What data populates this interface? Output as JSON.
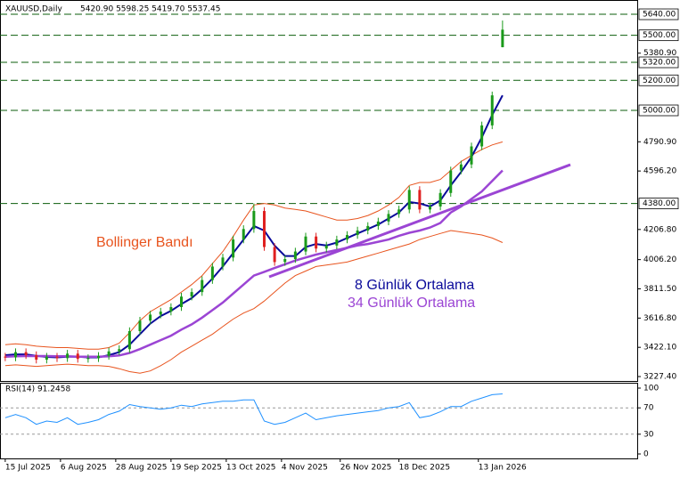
{
  "chart_data": [
    {
      "type": "candlestick",
      "title": "XAUUSD,Daily",
      "subtitle": "5420.90 5598.25 5419.70 5537.45",
      "x": [
        0,
        3,
        6,
        9,
        12,
        15,
        18,
        21,
        24,
        27,
        30,
        33,
        36,
        39,
        42,
        45,
        48,
        51,
        54,
        57,
        60,
        63,
        66,
        69,
        72,
        75,
        78,
        81,
        84,
        87,
        90,
        93,
        96,
        99,
        102,
        105,
        108,
        111,
        114,
        117,
        120,
        123,
        126,
        129,
        132,
        135,
        138,
        141,
        144
      ],
      "xlim": [
        -1,
        183
      ],
      "xticks": [
        {
          "value": 0,
          "label": "15 Jul 2025"
        },
        {
          "value": 16,
          "label": "6 Aug 2025"
        },
        {
          "value": 32,
          "label": "28 Aug 2025"
        },
        {
          "value": 48,
          "label": "19 Sep 2025"
        },
        {
          "value": 64,
          "label": "13 Oct 2025"
        },
        {
          "value": 80,
          "label": "4 Nov 2025"
        },
        {
          "value": 97,
          "label": "26 Nov 2025"
        },
        {
          "value": 114,
          "label": "18 Dec 2025"
        },
        {
          "value": 137,
          "label": "13 Jan 2026"
        }
      ],
      "ylim": [
        3198,
        5735
      ],
      "yticks": [
        {
          "value": 5380.9,
          "label": "5380.90"
        },
        {
          "value": 4790.9,
          "label": "4790.90"
        },
        {
          "value": 4596.2,
          "label": "4596.20"
        },
        {
          "value": 4206.8,
          "label": "4206.80"
        },
        {
          "value": 4006.2,
          "label": "4006.20"
        },
        {
          "value": 3811.5,
          "label": "3811.50"
        },
        {
          "value": 3616.8,
          "label": "3616.80"
        },
        {
          "value": 3422.1,
          "label": "3422.10"
        },
        {
          "value": 3227.4,
          "label": "3227.40"
        }
      ],
      "levels": [
        {
          "value": 5640,
          "label": "5640.00"
        },
        {
          "value": 5500,
          "label": "5500.00"
        },
        {
          "value": 5320,
          "label": "5320.00"
        },
        {
          "value": 5200,
          "label": "5200.00"
        },
        {
          "value": 5000,
          "label": "5000.00"
        },
        {
          "value": 4380,
          "label": "4380.00"
        }
      ],
      "up_color": "#1a9a1a",
      "down_color": "#e02020",
      "level_color": "#0b5d0b",
      "open": [
        3360,
        3355,
        3390,
        3370,
        3340,
        3360,
        3350,
        3380,
        3345,
        3350,
        3365,
        3395,
        3410,
        3530,
        3600,
        3640,
        3660,
        3690,
        3760,
        3790,
        3870,
        3960,
        4020,
        4140,
        4210,
        4330,
        4090,
        3990,
        4010,
        4060,
        4160,
        4080,
        4100,
        4140,
        4170,
        4200,
        4230,
        4260,
        4310,
        4340,
        4470,
        4340,
        4360,
        4450,
        4600,
        4640,
        4760,
        4900,
        5420.9
      ],
      "high": [
        3385,
        3415,
        3415,
        3395,
        3385,
        3385,
        3405,
        3405,
        3375,
        3390,
        3420,
        3435,
        3555,
        3625,
        3665,
        3685,
        3715,
        3785,
        3815,
        3895,
        3985,
        4045,
        4165,
        4235,
        4380,
        4355,
        4115,
        4035,
        4085,
        4185,
        4185,
        4125,
        4165,
        4195,
        4225,
        4255,
        4285,
        4335,
        4365,
        4495,
        4495,
        4385,
        4475,
        4625,
        4665,
        4785,
        4925,
        5125,
        5598.25
      ],
      "low": [
        3330,
        3330,
        3345,
        3315,
        3315,
        3325,
        3325,
        3320,
        3320,
        3325,
        3340,
        3370,
        3385,
        3505,
        3575,
        3615,
        3635,
        3665,
        3735,
        3765,
        3845,
        3935,
        3995,
        4115,
        4185,
        4065,
        3965,
        3965,
        3985,
        4035,
        4055,
        4055,
        4075,
        4115,
        4145,
        4175,
        4205,
        4235,
        4285,
        4315,
        4315,
        4315,
        4335,
        4425,
        4575,
        4615,
        4735,
        4875,
        5419.7
      ],
      "close": [
        3355,
        3390,
        3370,
        3340,
        3360,
        3350,
        3380,
        3345,
        3350,
        3365,
        3395,
        3410,
        3530,
        3600,
        3640,
        3660,
        3690,
        3760,
        3790,
        3870,
        3960,
        4020,
        4140,
        4210,
        4330,
        4090,
        3990,
        4010,
        4060,
        4160,
        4080,
        4100,
        4140,
        4170,
        4200,
        4230,
        4260,
        4310,
        4340,
        4470,
        4340,
        4360,
        4450,
        4600,
        4640,
        4760,
        4900,
        5100,
        5537.45
      ],
      "series": [
        {
          "name": "Bollinger Bandı",
          "color": "#e8541e",
          "values": [
            3440,
            3445,
            3440,
            3430,
            3425,
            3420,
            3420,
            3415,
            3410,
            3410,
            3420,
            3450,
            3520,
            3600,
            3660,
            3700,
            3740,
            3790,
            3840,
            3900,
            3980,
            4060,
            4160,
            4270,
            4370,
            4380,
            4370,
            4350,
            4340,
            4330,
            4310,
            4290,
            4270,
            4270,
            4280,
            4300,
            4330,
            4370,
            4420,
            4500,
            4520,
            4520,
            4540,
            4600,
            4660,
            4700,
            4740,
            4770,
            4790
          ],
          "lower": [
            3300,
            3305,
            3300,
            3295,
            3300,
            3305,
            3310,
            3305,
            3300,
            3300,
            3295,
            3280,
            3260,
            3250,
            3265,
            3300,
            3340,
            3390,
            3430,
            3470,
            3510,
            3560,
            3610,
            3650,
            3680,
            3730,
            3790,
            3850,
            3900,
            3930,
            3960,
            3970,
            3980,
            3990,
            4010,
            4030,
            4050,
            4070,
            4090,
            4110,
            4140,
            4160,
            4180,
            4200,
            4190,
            4180,
            4170,
            4150,
            4120
          ]
        },
        {
          "name": "8 Günlük Ortalama",
          "color": "#0a0a9a",
          "values": [
            3370,
            3375,
            3375,
            3365,
            3358,
            3355,
            3360,
            3360,
            3355,
            3355,
            3370,
            3390,
            3440,
            3510,
            3580,
            3630,
            3665,
            3710,
            3750,
            3810,
            3880,
            3960,
            4050,
            4140,
            4230,
            4200,
            4100,
            4030,
            4030,
            4090,
            4110,
            4100,
            4120,
            4150,
            4180,
            4210,
            4240,
            4280,
            4320,
            4390,
            4380,
            4360,
            4400,
            4500,
            4590,
            4690,
            4820,
            4970,
            5100
          ]
        },
        {
          "name": "34 Günlük Ortalama",
          "color": "#9b45d4",
          "values": [
            3360,
            3362,
            3364,
            3364,
            3364,
            3362,
            3362,
            3360,
            3360,
            3360,
            3362,
            3368,
            3385,
            3410,
            3440,
            3470,
            3500,
            3540,
            3575,
            3620,
            3670,
            3720,
            3780,
            3840,
            3900,
            3925,
            3950,
            3975,
            4000,
            4020,
            4040,
            4055,
            4070,
            4085,
            4100,
            4110,
            4125,
            4140,
            4165,
            4185,
            4200,
            4220,
            4250,
            4320,
            4360,
            4410,
            4460,
            4530,
            4600
          ]
        }
      ]
    },
    {
      "type": "line",
      "title": "RSI(14) 91.2458",
      "color": "#1e90ff",
      "x": [
        0,
        3,
        6,
        9,
        12,
        15,
        18,
        21,
        24,
        27,
        30,
        33,
        36,
        39,
        42,
        45,
        48,
        51,
        54,
        57,
        60,
        63,
        66,
        69,
        72,
        75,
        78,
        81,
        84,
        87,
        90,
        93,
        96,
        99,
        102,
        105,
        108,
        111,
        114,
        117,
        120,
        123,
        126,
        129,
        132,
        135,
        138,
        141,
        144
      ],
      "xlim": [
        -1,
        183
      ],
      "ylim": [
        0,
        100
      ],
      "yticks": [
        0,
        30,
        70,
        100
      ],
      "values": [
        55,
        60,
        55,
        45,
        50,
        48,
        55,
        45,
        48,
        52,
        60,
        65,
        75,
        72,
        70,
        68,
        70,
        74,
        72,
        76,
        78,
        80,
        80,
        82,
        82,
        50,
        45,
        48,
        55,
        62,
        52,
        55,
        58,
        60,
        62,
        64,
        66,
        70,
        72,
        78,
        55,
        58,
        64,
        72,
        72,
        80,
        85,
        90,
        91.2458
      ]
    }
  ]
}
